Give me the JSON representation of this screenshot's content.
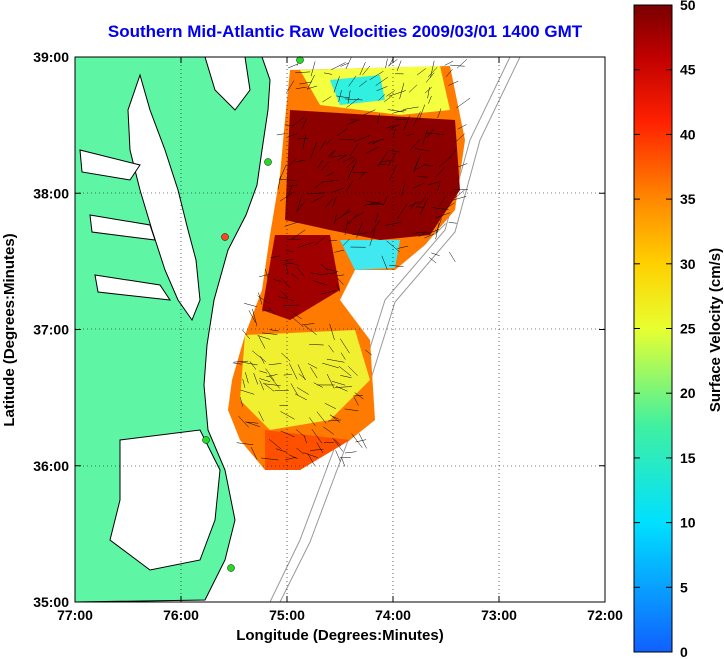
{
  "title": "Southern Mid-Atlantic Raw Velocities 2009/03/01 1400 GMT",
  "xlabel": "Longitude (Degrees:Minutes)",
  "ylabel": "Latitude (Degrees:Minutes)",
  "x_ticks": [
    "77:00",
    "76:00",
    "75:00",
    "74:00",
    "73:00",
    "72:00"
  ],
  "y_ticks": [
    "39:00",
    "38:00",
    "37:00",
    "36:00",
    "35:00"
  ],
  "colorbar": {
    "label": "Surface Velocity (cm/s)",
    "ticks": [
      "0",
      "5",
      "10",
      "15",
      "20",
      "25",
      "30",
      "35",
      "40",
      "45",
      "50"
    ],
    "min": 0,
    "max": 50
  },
  "colors": {
    "land": "#5ef5a4",
    "coastline": "#000000",
    "bathymetry": "#999999",
    "station": "#22dd22",
    "station_alt": "#ff4422"
  },
  "chart_data": {
    "type": "heatmap",
    "xlim": [
      "77:00",
      "72:00"
    ],
    "ylim": [
      "35:00",
      "39:00"
    ],
    "grid": true
  }
}
